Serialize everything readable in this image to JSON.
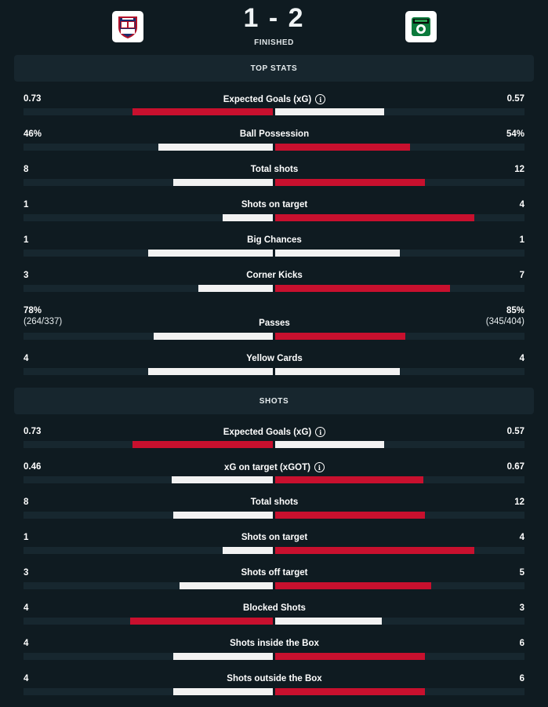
{
  "match": {
    "score": "1 - 2",
    "status": "FINISHED",
    "home_crest": "Cagliari",
    "away_crest": "Sassuolo"
  },
  "colors": {
    "red": "#c8102e",
    "white": "#f2f2f2",
    "track": "#17272f"
  },
  "sections": [
    {
      "title": "TOP STATS",
      "rows": [
        {
          "label": "Expected Goals (xG)",
          "info": true,
          "home": "0.73",
          "away": "0.57",
          "hv": 0.73,
          "av": 0.57,
          "hc": "red",
          "ac": "white"
        },
        {
          "label": "Ball Possession",
          "home": "46%",
          "away": "54%",
          "hv": 46,
          "av": 54,
          "hc": "white",
          "ac": "red"
        },
        {
          "label": "Total shots",
          "home": "8",
          "away": "12",
          "hv": 8,
          "av": 12,
          "hc": "white",
          "ac": "red"
        },
        {
          "label": "Shots on target",
          "home": "1",
          "away": "4",
          "hv": 1,
          "av": 4,
          "hc": "white",
          "ac": "red"
        },
        {
          "label": "Big Chances",
          "home": "1",
          "away": "1",
          "hv": 1,
          "av": 1,
          "hc": "white",
          "ac": "white"
        },
        {
          "label": "Corner Kicks",
          "home": "3",
          "away": "7",
          "hv": 3,
          "av": 7,
          "hc": "white",
          "ac": "red"
        },
        {
          "label": "Passes",
          "home": "78%",
          "home_sub": "(264/337)",
          "away": "85%",
          "away_sub": "(345/404)",
          "hv": 78,
          "av": 85,
          "hc": "white",
          "ac": "red"
        },
        {
          "label": "Yellow Cards",
          "home": "4",
          "away": "4",
          "hv": 4,
          "av": 4,
          "hc": "white",
          "ac": "white"
        }
      ]
    },
    {
      "title": "SHOTS",
      "rows": [
        {
          "label": "Expected Goals (xG)",
          "info": true,
          "home": "0.73",
          "away": "0.57",
          "hv": 0.73,
          "av": 0.57,
          "hc": "red",
          "ac": "white"
        },
        {
          "label": "xG on target (xGOT)",
          "info": true,
          "home": "0.46",
          "away": "0.67",
          "hv": 0.46,
          "av": 0.67,
          "hc": "white",
          "ac": "red"
        },
        {
          "label": "Total shots",
          "home": "8",
          "away": "12",
          "hv": 8,
          "av": 12,
          "hc": "white",
          "ac": "red"
        },
        {
          "label": "Shots on target",
          "home": "1",
          "away": "4",
          "hv": 1,
          "av": 4,
          "hc": "white",
          "ac": "red"
        },
        {
          "label": "Shots off target",
          "home": "3",
          "away": "5",
          "hv": 3,
          "av": 5,
          "hc": "white",
          "ac": "red"
        },
        {
          "label": "Blocked Shots",
          "home": "4",
          "away": "3",
          "hv": 4,
          "av": 3,
          "hc": "red",
          "ac": "white"
        },
        {
          "label": "Shots inside the Box",
          "home": "4",
          "away": "6",
          "hv": 4,
          "av": 6,
          "hc": "white",
          "ac": "red"
        },
        {
          "label": "Shots outside the Box",
          "home": "4",
          "away": "6",
          "hv": 4,
          "av": 6,
          "hc": "white",
          "ac": "red"
        }
      ]
    }
  ]
}
